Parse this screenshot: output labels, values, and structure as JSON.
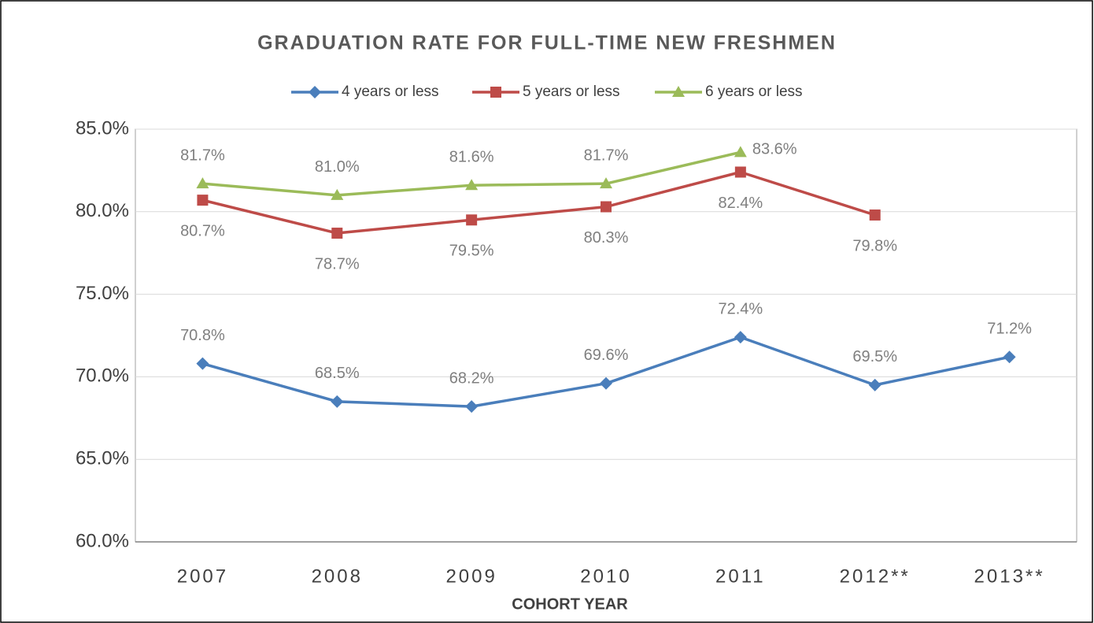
{
  "chart_data": {
    "type": "line",
    "title": "GRADUATION RATE FOR FULL-TIME NEW FRESHMEN",
    "x_label": "COHORT YEAR",
    "categories": [
      "2007",
      "2008",
      "2009",
      "2010",
      "2011",
      "2012**",
      "2013**"
    ],
    "series": [
      {
        "name": "4 years or less",
        "color": "#4a7ebb",
        "marker": "diamond",
        "values": [
          70.8,
          68.5,
          68.2,
          69.6,
          72.4,
          69.5,
          71.2
        ],
        "value_labels": [
          "70.8%",
          "68.5%",
          "68.2%",
          "69.6%",
          "72.4%",
          "69.5%",
          "71.2%"
        ]
      },
      {
        "name": "5 years or less",
        "color": "#be4b48",
        "marker": "square",
        "values": [
          80.7,
          78.7,
          79.5,
          80.3,
          82.4,
          79.8,
          null
        ],
        "value_labels": [
          "80.7%",
          "78.7%",
          "79.5%",
          "80.3%",
          "82.4%",
          "79.8%",
          null
        ]
      },
      {
        "name": "6 years or less",
        "color": "#9bbb59",
        "marker": "triangle",
        "values": [
          81.7,
          81.0,
          81.6,
          81.7,
          83.6,
          null,
          null
        ],
        "value_labels": [
          "81.7%",
          "81.0%",
          "81.6%",
          "81.7%",
          "83.6%",
          null,
          null
        ]
      }
    ],
    "ylim": [
      60,
      85
    ],
    "yticks": [
      {
        "value": 60,
        "label": "60.0%"
      },
      {
        "value": 65,
        "label": "65.0%"
      },
      {
        "value": 70,
        "label": "70.0%"
      },
      {
        "value": 75,
        "label": "75.0%"
      },
      {
        "value": 80,
        "label": "80.0%"
      },
      {
        "value": 85,
        "label": "85.0%"
      }
    ],
    "grid": true,
    "legend": "top"
  }
}
